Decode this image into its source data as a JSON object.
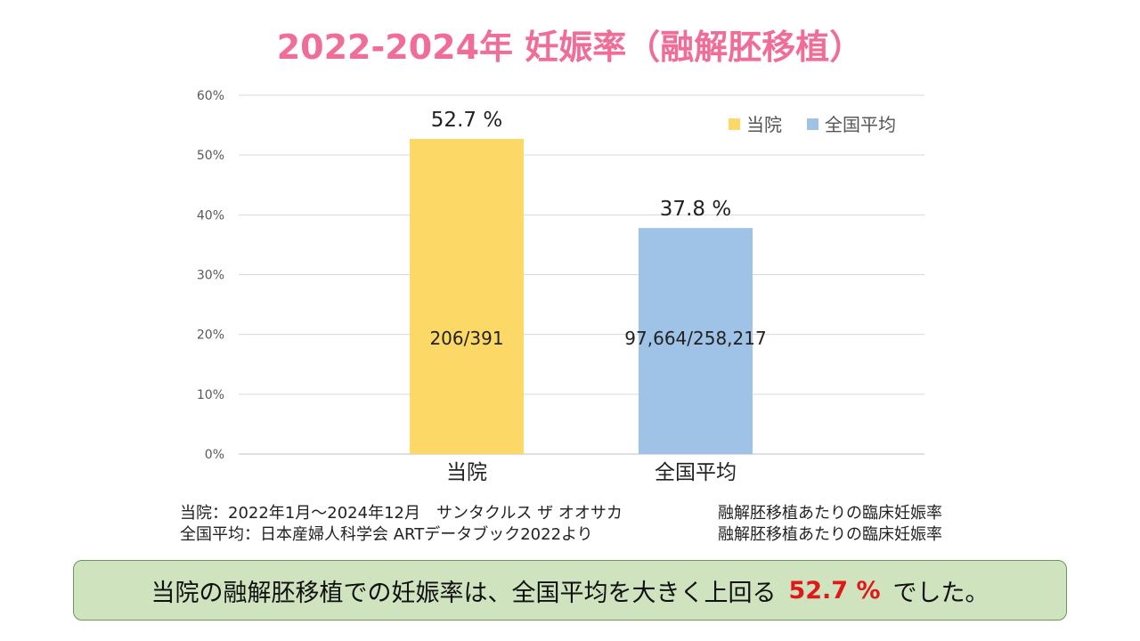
{
  "colors": {
    "title": "#f06d98",
    "series_hospital": "#fcd867",
    "series_national": "#9ec3e6",
    "highlight": "#e01818",
    "summary_bg": "#cfe3bf"
  },
  "chart_data": {
    "type": "bar",
    "title": "2022-2024年 妊娠率（融解胚移植）",
    "categories": [
      "当院",
      "全国平均"
    ],
    "values": [
      52.7,
      37.8
    ],
    "value_labels": [
      "52.7 %",
      "37.8 %"
    ],
    "inner_labels": [
      "206/391",
      "97,664/258,217"
    ],
    "series": [
      {
        "name": "当院",
        "values": [
          52.7,
          null
        ]
      },
      {
        "name": "全国平均",
        "values": [
          null,
          37.8
        ]
      }
    ],
    "ylim": [
      0,
      60
    ],
    "yticks": [
      0,
      10,
      20,
      30,
      40,
      50,
      60
    ],
    "ytick_labels": [
      "0%",
      "10%",
      "20%",
      "30%",
      "40%",
      "50%",
      "60%"
    ],
    "grid": true,
    "legend_position": "top-right",
    "xlabel": "",
    "ylabel": ""
  },
  "notes": [
    {
      "left": "当院：2022年1月～2024年12月　サンタクルス ザ オオサカ",
      "right": "融解胚移植あたりの臨床妊娠率"
    },
    {
      "left": "全国平均：日本産婦人科学会 ARTデータブック2022より",
      "right": "融解胚移植あたりの臨床妊娠率"
    }
  ],
  "summary": {
    "before": "当院の融解胚移植での妊娠率は、全国平均を大きく上回る",
    "highlight": "52.7 %",
    "after": "でした。"
  }
}
